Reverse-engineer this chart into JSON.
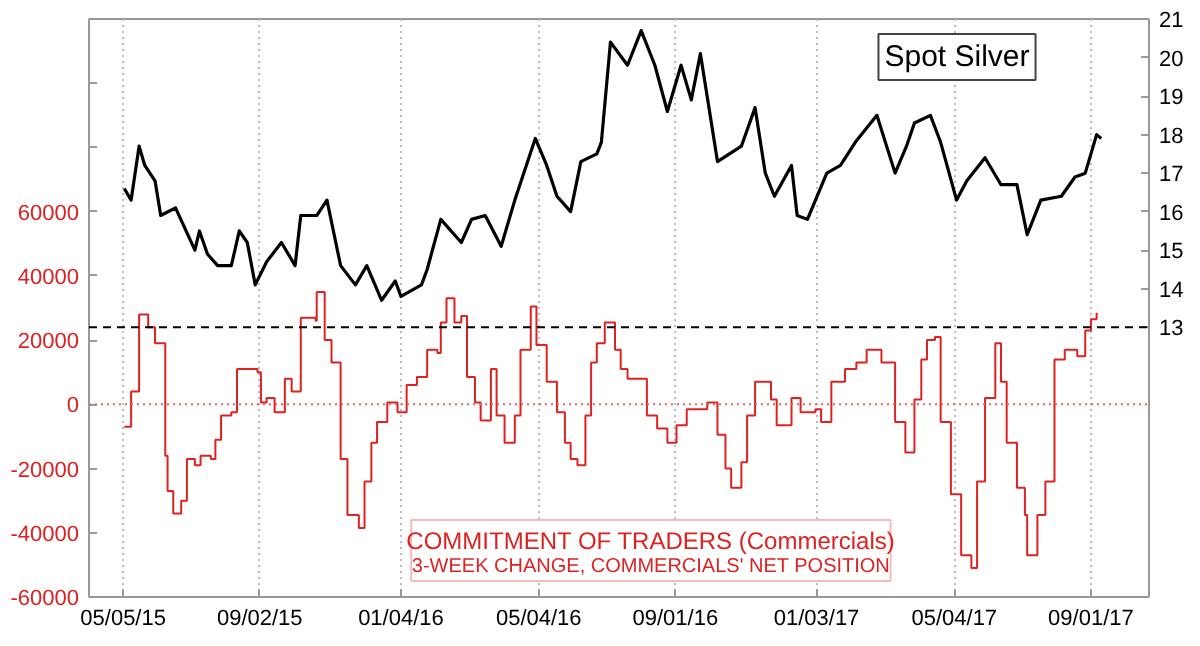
{
  "chart_data": {
    "type": "line",
    "xlim": [
      "2015-04-05",
      "2017-10-22"
    ],
    "ylim": [
      -60000,
      120000
    ],
    "y2lim": [
      6,
      21
    ],
    "xticks": [
      {
        "value": "2015-05-05",
        "label": "05/05/15"
      },
      {
        "value": "2015-09-02",
        "label": "09/02/15"
      },
      {
        "value": "2016-01-04",
        "label": "01/04/16"
      },
      {
        "value": "2016-05-04",
        "label": "05/04/16"
      },
      {
        "value": "2016-09-01",
        "label": "09/01/16"
      },
      {
        "value": "2017-01-03",
        "label": "01/03/17"
      },
      {
        "value": "2017-05-04",
        "label": "05/04/17"
      },
      {
        "value": "2017-09-01",
        "label": "09/01/17"
      }
    ],
    "yticks": [
      -60000,
      -40000,
      -20000,
      0,
      20000,
      40000,
      60000,
      {
        "value": 80000,
        "label": null
      },
      {
        "value": 100000,
        "label": null
      }
    ],
    "y2ticks": [
      13,
      14,
      15,
      16,
      17,
      18,
      19,
      20,
      21
    ],
    "grid": "x",
    "annotations": [
      "3-WEEK CHANGE, COMMERCIALS' NET POSITION"
    ],
    "ref_lines": [
      {
        "axis": "y2",
        "value": 13,
        "color": "#000000",
        "line_style": "dashed"
      },
      {
        "axis": "y",
        "value": 0,
        "color": "#e06666",
        "line_style": "dotted"
      }
    ],
    "series": [
      {
        "name": "COMMITMENT OF TRADERS (Commercials)",
        "type": "step",
        "axis": "y",
        "color": "#dd2222",
        "x": [
          "2015-05-06",
          "2015-05-12",
          "2015-05-19",
          "2015-05-27",
          "2015-06-02",
          "2015-06-11",
          "2015-06-13",
          "2015-06-18",
          "2015-06-25",
          "2015-06-30",
          "2015-07-07",
          "2015-07-12",
          "2015-07-21",
          "2015-07-25",
          "2015-07-30",
          "2015-08-08",
          "2015-08-13",
          "2015-08-31",
          "2015-09-03",
          "2015-09-08",
          "2015-09-15",
          "2015-09-24",
          "2015-09-30",
          "2015-10-08",
          "2015-10-21",
          "2015-10-22",
          "2015-10-29",
          "2015-11-04",
          "2015-11-12",
          "2015-11-18",
          "2015-11-28",
          "2015-12-03",
          "2015-12-09",
          "2015-12-14",
          "2015-12-23",
          "2016-01-01",
          "2016-01-09",
          "2016-01-18",
          "2016-01-27",
          "2016-02-05",
          "2016-02-08",
          "2016-02-13",
          "2016-02-20",
          "2016-02-26",
          "2016-03-02",
          "2016-03-09",
          "2016-03-14",
          "2016-03-23",
          "2016-03-28",
          "2016-04-04",
          "2016-04-13",
          "2016-04-18",
          "2016-04-27",
          "2016-05-02",
          "2016-05-11",
          "2016-05-20",
          "2016-05-27",
          "2016-06-01",
          "2016-06-07",
          "2016-06-14",
          "2016-06-19",
          "2016-06-24",
          "2016-07-01",
          "2016-07-10",
          "2016-07-15",
          "2016-07-21",
          "2016-08-07",
          "2016-08-16",
          "2016-08-25",
          "2016-09-02",
          "2016-09-11",
          "2016-09-29",
          "2016-10-08",
          "2016-10-15",
          "2016-10-20",
          "2016-10-29",
          "2016-11-03",
          "2016-11-10",
          "2016-11-24",
          "2016-11-29",
          "2016-12-12",
          "2016-12-20",
          "2017-01-02",
          "2017-01-07",
          "2017-01-16",
          "2017-01-28",
          "2017-02-07",
          "2017-02-16",
          "2017-03-01",
          "2017-03-13",
          "2017-03-22",
          "2017-03-30",
          "2017-04-05",
          "2017-04-10",
          "2017-04-17",
          "2017-04-22",
          "2017-05-01",
          "2017-05-10",
          "2017-05-19",
          "2017-05-24",
          "2017-05-31",
          "2017-06-09",
          "2017-06-14",
          "2017-06-19",
          "2017-06-28",
          "2017-07-05",
          "2017-07-07",
          "2017-07-16",
          "2017-07-23",
          "2017-07-31",
          "2017-08-09",
          "2017-08-20",
          "2017-08-27",
          "2017-09-01",
          "2017-09-06"
        ],
        "values": [
          -7000,
          4000,
          28000,
          24000,
          19000,
          -16000,
          -27000,
          -34000,
          -30000,
          -17000,
          -19000,
          -16000,
          -17000,
          -11000,
          -3500,
          -2500,
          11000,
          10000,
          600,
          2000,
          -2500,
          8000,
          4000,
          27000,
          26000,
          35000,
          20000,
          13000,
          -17000,
          -34500,
          -38500,
          -24000,
          -12000,
          -5500,
          600,
          -2500,
          6000,
          8500,
          17000,
          16000,
          25500,
          33000,
          25500,
          27500,
          8500,
          600,
          -5000,
          11000,
          -3500,
          -12000,
          -3500,
          17000,
          30500,
          18500,
          7000,
          -2500,
          -12000,
          -17000,
          -19000,
          -3500,
          13000,
          19000,
          25500,
          17000,
          11000,
          8000,
          -3500,
          -7500,
          -12000,
          -6500,
          -1500,
          600,
          -9500,
          -20000,
          -26000,
          -18000,
          -3500,
          7000,
          1500,
          -6500,
          2000,
          -2500,
          -1500,
          -5500,
          7000,
          11000,
          13000,
          17000,
          13000,
          -5500,
          -15000,
          1500,
          14000,
          20000,
          21000,
          -5500,
          -28000,
          -47000,
          -51000,
          -24000,
          2000,
          19000,
          7000,
          -12000,
          -26000,
          -34500,
          -47000,
          -34500,
          -24000,
          14000,
          17000,
          15000,
          23000,
          26500,
          28500
        ]
      },
      {
        "name": "Spot Silver",
        "axis": "y2",
        "color": "#000000",
        "x": [
          "2015-05-06",
          "2015-05-12",
          "2015-05-19",
          "2015-05-24",
          "2015-06-02",
          "2015-06-07",
          "2015-06-20",
          "2015-07-07",
          "2015-07-11",
          "2015-07-18",
          "2015-07-27",
          "2015-08-08",
          "2015-08-15",
          "2015-08-22",
          "2015-08-29",
          "2015-09-08",
          "2015-09-21",
          "2015-10-03",
          "2015-10-08",
          "2015-10-22",
          "2015-10-31",
          "2015-11-12",
          "2015-11-25",
          "2015-12-05",
          "2015-12-18",
          "2015-12-30",
          "2016-01-04",
          "2016-01-22",
          "2016-01-27",
          "2016-02-08",
          "2016-02-26",
          "2016-03-06",
          "2016-03-18",
          "2016-04-01",
          "2016-04-13",
          "2016-05-01",
          "2016-05-11",
          "2016-05-20",
          "2016-06-01",
          "2016-06-10",
          "2016-06-24",
          "2016-06-28",
          "2016-07-06",
          "2016-07-21",
          "2016-08-02",
          "2016-08-14",
          "2016-08-25",
          "2016-09-06",
          "2016-09-15",
          "2016-09-23",
          "2016-10-08",
          "2016-10-29",
          "2016-11-10",
          "2016-11-19",
          "2016-11-27",
          "2016-12-12",
          "2016-12-17",
          "2016-12-26",
          "2017-01-12",
          "2017-01-24",
          "2017-02-06",
          "2017-02-25",
          "2017-03-13",
          "2017-03-23",
          "2017-03-30",
          "2017-04-13",
          "2017-04-22",
          "2017-05-06",
          "2017-05-15",
          "2017-05-31",
          "2017-06-14",
          "2017-06-28",
          "2017-07-07",
          "2017-07-19",
          "2017-08-06",
          "2017-08-18",
          "2017-08-27",
          "2017-09-06",
          "2017-09-10"
        ],
        "values": [
          16.6,
          16.3,
          17.7,
          17.2,
          16.8,
          15.9,
          16.1,
          15.0,
          15.5,
          14.9,
          14.6,
          14.6,
          15.5,
          15.2,
          14.1,
          14.7,
          15.2,
          14.6,
          15.9,
          15.9,
          16.3,
          14.6,
          14.1,
          14.6,
          13.7,
          14.2,
          13.8,
          14.1,
          14.5,
          15.8,
          15.2,
          15.8,
          15.9,
          15.1,
          16.3,
          17.9,
          17.2,
          16.4,
          16.0,
          17.3,
          17.5,
          17.8,
          20.4,
          19.8,
          20.7,
          19.8,
          18.6,
          19.8,
          18.9,
          20.1,
          17.3,
          17.7,
          18.7,
          17.0,
          16.4,
          17.2,
          15.9,
          15.8,
          17.0,
          17.2,
          17.8,
          18.5,
          17.0,
          17.7,
          18.3,
          18.5,
          17.8,
          16.3,
          16.8,
          17.4,
          16.7,
          16.7,
          15.4,
          16.3,
          16.4,
          16.9,
          17.0,
          18.0,
          17.9
        ]
      }
    ]
  }
}
